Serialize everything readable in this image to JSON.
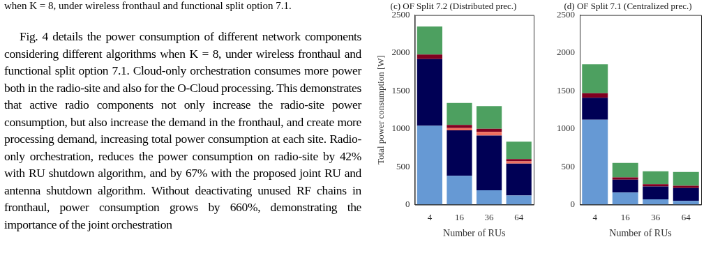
{
  "chart_data": [
    {
      "type": "other",
      "annotations": [
        "when K = 8, under wireless fronthaul and functional split option 7.1.",
        "Fig. 4 details the power consumption of different network components considering different algorithms when K = 8, under wireless fronthaul and functional split option 7.1. Cloud-only orchestration consumes more power both in the radio-site and also for the O-Cloud processing. This demonstrates that active radio components not only increase the radio-site power consumption, but also increase the demand in the fronthaul, and create more processing demand, increasing total power consumption at each site. Radio-only orchestration, reduces the power consumption on radio-site by 42% with RU shutdown algorithm, and by 67% with the proposed joint RU and antenna shutdown algorithm. Without deactivating unused RF chains in fronthaul, power consumption grows by 660%, demonstrating the importance of the joint orchestration"
      ]
    },
    {
      "type": "bar",
      "title": "(c) OF Split 7.2 (Distributed prec.)",
      "xlabel": "Number of RUs",
      "ylabel": "Total power consumption [W]",
      "categories": [
        "4",
        "16",
        "36",
        "64"
      ],
      "stacked": true,
      "grid": false,
      "ylim": [
        0,
        2500
      ],
      "yticks": [
        0,
        500,
        1000,
        1500,
        2000,
        2500
      ],
      "series": [
        {
          "color": "#6699d4",
          "values": [
            1040,
            380,
            190,
            120
          ]
        },
        {
          "color": "#000055",
          "values": [
            880,
            600,
            720,
            420
          ]
        },
        {
          "color": "#f07060",
          "values": [
            0,
            30,
            50,
            30
          ]
        },
        {
          "color": "#800020",
          "values": [
            60,
            40,
            40,
            30
          ]
        },
        {
          "color": "#4da060",
          "values": [
            370,
            290,
            300,
            230
          ]
        }
      ]
    },
    {
      "type": "bar",
      "title": "(d) OF Split 7.1 (Centralized prec.)",
      "xlabel": "Number of RUs",
      "categories": [
        "4",
        "16",
        "36",
        "64"
      ],
      "stacked": true,
      "grid": false,
      "ylim": [
        0,
        2500
      ],
      "yticks": [
        0,
        500,
        1000,
        1500,
        2000,
        2500
      ],
      "series": [
        {
          "color": "#6699d4",
          "values": [
            1120,
            160,
            70,
            50
          ]
        },
        {
          "color": "#000055",
          "values": [
            290,
            170,
            170,
            170
          ]
        },
        {
          "color": "#800020",
          "values": [
            60,
            30,
            30,
            30
          ]
        },
        {
          "color": "#4da060",
          "values": [
            380,
            190,
            170,
            180
          ]
        }
      ]
    }
  ]
}
